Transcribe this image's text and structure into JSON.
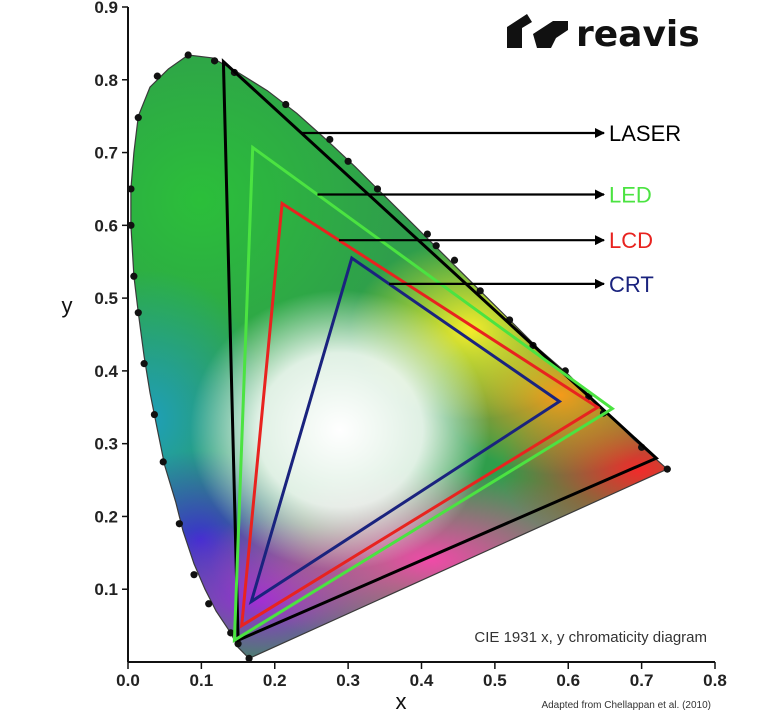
{
  "brand": {
    "name": "reavis"
  },
  "caption": "CIE 1931 x, y chromaticity diagram",
  "credit": "Adapted from Chellappan et al. (2010)",
  "chart_data": {
    "type": "scatter",
    "xlabel": "x",
    "ylabel": "y",
    "xlim": [
      0,
      0.8
    ],
    "ylim": [
      0,
      0.9
    ],
    "x_ticks": [
      "0.0",
      "0.1",
      "0.2",
      "0.3",
      "0.4",
      "0.5",
      "0.6",
      "0.7",
      "0.8"
    ],
    "y_ticks": [
      "0.1",
      "0.2",
      "0.3",
      "0.4",
      "0.5",
      "0.6",
      "0.7",
      "0.8",
      "0.9"
    ],
    "spectral_locus": [
      [
        0.165,
        0.005
      ],
      [
        0.15,
        0.02
      ],
      [
        0.14,
        0.04
      ],
      [
        0.12,
        0.07
      ],
      [
        0.105,
        0.1
      ],
      [
        0.09,
        0.135
      ],
      [
        0.075,
        0.18
      ],
      [
        0.065,
        0.22
      ],
      [
        0.05,
        0.27
      ],
      [
        0.04,
        0.32
      ],
      [
        0.03,
        0.37
      ],
      [
        0.022,
        0.42
      ],
      [
        0.014,
        0.48
      ],
      [
        0.008,
        0.53
      ],
      [
        0.004,
        0.6
      ],
      [
        0.004,
        0.65
      ],
      [
        0.008,
        0.7
      ],
      [
        0.014,
        0.75
      ],
      [
        0.03,
        0.79
      ],
      [
        0.055,
        0.815
      ],
      [
        0.082,
        0.834
      ],
      [
        0.115,
        0.83
      ],
      [
        0.15,
        0.81
      ],
      [
        0.19,
        0.785
      ],
      [
        0.23,
        0.754
      ],
      [
        0.27,
        0.718
      ],
      [
        0.31,
        0.68
      ],
      [
        0.35,
        0.64
      ],
      [
        0.39,
        0.6
      ],
      [
        0.43,
        0.56
      ],
      [
        0.48,
        0.51
      ],
      [
        0.52,
        0.47
      ],
      [
        0.56,
        0.43
      ],
      [
        0.6,
        0.395
      ],
      [
        0.64,
        0.355
      ],
      [
        0.69,
        0.305
      ],
      [
        0.735,
        0.265
      ]
    ],
    "locus_markers": [
      [
        0.165,
        0.005
      ],
      [
        0.15,
        0.025
      ],
      [
        0.14,
        0.04
      ],
      [
        0.11,
        0.08
      ],
      [
        0.09,
        0.12
      ],
      [
        0.07,
        0.19
      ],
      [
        0.048,
        0.275
      ],
      [
        0.036,
        0.34
      ],
      [
        0.022,
        0.41
      ],
      [
        0.014,
        0.48
      ],
      [
        0.008,
        0.53
      ],
      [
        0.004,
        0.6
      ],
      [
        0.004,
        0.65
      ],
      [
        0.014,
        0.748
      ],
      [
        0.04,
        0.805
      ],
      [
        0.082,
        0.834
      ],
      [
        0.118,
        0.826
      ],
      [
        0.145,
        0.81
      ],
      [
        0.215,
        0.766
      ],
      [
        0.275,
        0.718
      ],
      [
        0.3,
        0.688
      ],
      [
        0.34,
        0.65
      ],
      [
        0.408,
        0.588
      ],
      [
        0.42,
        0.572
      ],
      [
        0.445,
        0.552
      ],
      [
        0.48,
        0.51
      ],
      [
        0.52,
        0.47
      ],
      [
        0.552,
        0.435
      ],
      [
        0.596,
        0.4
      ],
      [
        0.628,
        0.365
      ],
      [
        0.648,
        0.342
      ],
      [
        0.7,
        0.295
      ],
      [
        0.735,
        0.265
      ]
    ],
    "series": [
      {
        "name": "LASER",
        "color": "#000000",
        "points": [
          [
            0.13,
            0.825
          ],
          [
            0.72,
            0.28
          ],
          [
            0.15,
            0.03
          ]
        ]
      },
      {
        "name": "LED",
        "color": "#4be341",
        "points": [
          [
            0.17,
            0.707
          ],
          [
            0.66,
            0.348
          ],
          [
            0.145,
            0.03
          ]
        ]
      },
      {
        "name": "LCD",
        "color": "#e8231f",
        "points": [
          [
            0.21,
            0.63
          ],
          [
            0.64,
            0.35
          ],
          [
            0.155,
            0.05
          ]
        ]
      },
      {
        "name": "CRT",
        "color": "#1a237e",
        "points": [
          [
            0.305,
            0.555
          ],
          [
            0.588,
            0.358
          ],
          [
            0.168,
            0.083
          ]
        ]
      }
    ]
  }
}
